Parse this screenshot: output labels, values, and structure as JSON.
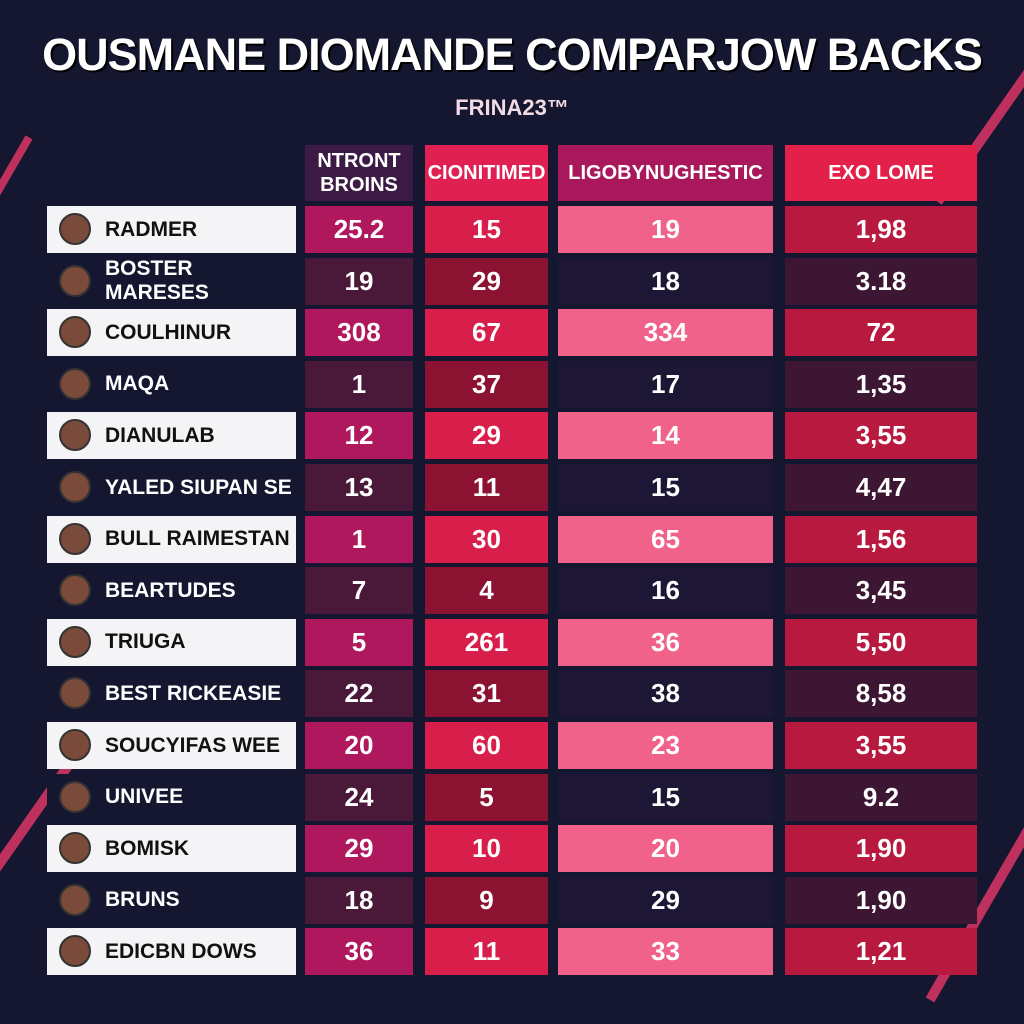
{
  "title": "OUSMANE DIOMANDE COMPARJOW BACKS",
  "subtitle": "FRINA23™",
  "table": {
    "headers": [
      "NTRONT BROINS",
      "CIONITIMED",
      "LIGOBYNUGHESTIC",
      "EXO LOME"
    ],
    "rows": [
      [
        "RADMER",
        "25.2",
        "15",
        "19",
        "1,98"
      ],
      [
        "BOSTER MARESES",
        "19",
        "29",
        "18",
        "3.18"
      ],
      [
        "COULHINUR",
        "308",
        "67",
        "334",
        "72"
      ],
      [
        "MAQA",
        "1",
        "37",
        "17",
        "1,35"
      ],
      [
        "DIANULAB",
        "12",
        "29",
        "14",
        "3,55"
      ],
      [
        "YALED SIUPAN SE",
        "13",
        "11",
        "15",
        "4,47"
      ],
      [
        "BULL RAIMESTAN",
        "1",
        "30",
        "65",
        "1,56"
      ],
      [
        "BEARTUDES",
        "7",
        "4",
        "16",
        "3,45"
      ],
      [
        "TRIUGA",
        "5",
        "261",
        "36",
        "5,50"
      ],
      [
        "BEST RICKEASIE",
        "22",
        "31",
        "38",
        "8,58"
      ],
      [
        "SOUCYIFAS WEE",
        "20",
        "60",
        "23",
        "3,55"
      ],
      [
        "UNIVEE",
        "24",
        "5",
        "15",
        "9.2"
      ],
      [
        "BOMISK",
        "29",
        "10",
        "20",
        "1,90"
      ],
      [
        "BRUNS",
        "18",
        "9",
        "29",
        "1,90"
      ],
      [
        "EDICBN DOWS",
        "36",
        "11",
        "33",
        "1,21"
      ]
    ]
  }
}
